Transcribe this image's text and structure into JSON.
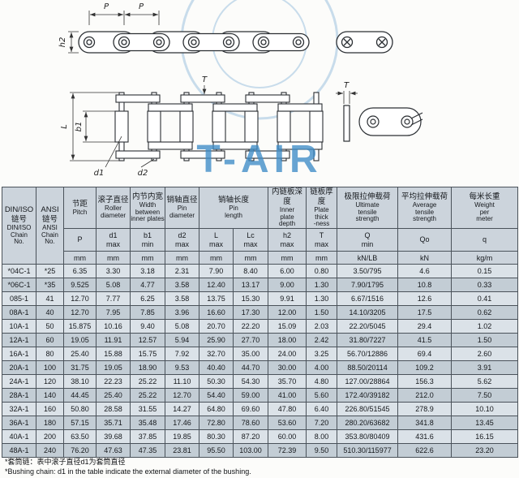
{
  "watermark": {
    "text": "T-AIR",
    "color": "#3e8cc7"
  },
  "diagram": {
    "labels": {
      "pitch": "P",
      "plate_height": "h2",
      "pin_length": "L",
      "inner_width": "b1",
      "roller_diameter": "d1",
      "pin_diameter": "d2",
      "plate_thickness": "T"
    }
  },
  "table": {
    "header": {
      "din_zh": "DIN/ISO\n链号",
      "din_en": "DIN/ISO\nChain\nNo.",
      "ansi_zh": "ANSI\n链号",
      "ansi_en": "ANSI\nChain\nNo.",
      "groups": [
        {
          "zh": "节距",
          "en": "Pitch"
        },
        {
          "zh": "滚子直径",
          "en": "Roller\ndiameter"
        },
        {
          "zh": "内节内宽",
          "en": "Width\nbetween\ninner plates"
        },
        {
          "zh": "销轴直径",
          "en": "Pin\ndiameter"
        },
        {
          "zh": "销轴长度",
          "en": "Pin\nlength"
        },
        {
          "zh": "内链板深度",
          "en": "Inner\nplate\ndepth"
        },
        {
          "zh": "链板厚度",
          "en": "Plate\nthick\n-ness"
        },
        {
          "zh": "极限拉伸载荷",
          "en": "Ultimate\ntensile\nstrength"
        },
        {
          "zh": "平均拉伸载荷",
          "en": "Average\ntensile\nstrength"
        },
        {
          "zh": "每米长重",
          "en": "Weight\nper\nmeter"
        }
      ],
      "symbols": [
        "P",
        "d1\nmax",
        "b1\nmin",
        "d2\nmax",
        "L\nmax",
        "Lc\nmax",
        "h2\nmax",
        "T\nmax",
        "Q\nmin",
        "Qo",
        "q"
      ],
      "units": [
        "mm",
        "mm",
        "mm",
        "mm",
        "mm",
        "mm",
        "mm",
        "mm",
        "kN/LB",
        "kN",
        "kg/m"
      ]
    },
    "rows": [
      [
        "*04C-1",
        "*25",
        "6.35",
        "3.30",
        "3.18",
        "2.31",
        "7.90",
        "8.40",
        "6.00",
        "0.80",
        "3.50/795",
        "4.6",
        "0.15"
      ],
      [
        "*06C-1",
        "*35",
        "9.525",
        "5.08",
        "4.77",
        "3.58",
        "12.40",
        "13.17",
        "9.00",
        "1.30",
        "7.90/1795",
        "10.8",
        "0.33"
      ],
      [
        "085-1",
        "41",
        "12.70",
        "7.77",
        "6.25",
        "3.58",
        "13.75",
        "15.30",
        "9.91",
        "1.30",
        "6.67/1516",
        "12.6",
        "0.41"
      ],
      [
        "08A-1",
        "40",
        "12.70",
        "7.95",
        "7.85",
        "3.96",
        "16.60",
        "17.30",
        "12.00",
        "1.50",
        "14.10/3205",
        "17.5",
        "0.62"
      ],
      [
        "10A-1",
        "50",
        "15.875",
        "10.16",
        "9.40",
        "5.08",
        "20.70",
        "22.20",
        "15.09",
        "2.03",
        "22.20/5045",
        "29.4",
        "1.02"
      ],
      [
        "12A-1",
        "60",
        "19.05",
        "11.91",
        "12.57",
        "5.94",
        "25.90",
        "27.70",
        "18.00",
        "2.42",
        "31.80/7227",
        "41.5",
        "1.50"
      ],
      [
        "16A-1",
        "80",
        "25.40",
        "15.88",
        "15.75",
        "7.92",
        "32.70",
        "35.00",
        "24.00",
        "3.25",
        "56.70/12886",
        "69.4",
        "2.60"
      ],
      [
        "20A-1",
        "100",
        "31.75",
        "19.05",
        "18.90",
        "9.53",
        "40.40",
        "44.70",
        "30.00",
        "4.00",
        "88.50/20114",
        "109.2",
        "3.91"
      ],
      [
        "24A-1",
        "120",
        "38.10",
        "22.23",
        "25.22",
        "11.10",
        "50.30",
        "54.30",
        "35.70",
        "4.80",
        "127.00/28864",
        "156.3",
        "5.62"
      ],
      [
        "28A-1",
        "140",
        "44.45",
        "25.40",
        "25.22",
        "12.70",
        "54.40",
        "59.00",
        "41.00",
        "5.60",
        "172.40/39182",
        "212.0",
        "7.50"
      ],
      [
        "32A-1",
        "160",
        "50.80",
        "28.58",
        "31.55",
        "14.27",
        "64.80",
        "69.60",
        "47.80",
        "6.40",
        "226.80/51545",
        "278.9",
        "10.10"
      ],
      [
        "36A-1",
        "180",
        "57.15",
        "35.71",
        "35.48",
        "17.46",
        "72.80",
        "78.60",
        "53.60",
        "7.20",
        "280.20/63682",
        "341.8",
        "13.45"
      ],
      [
        "40A-1",
        "200",
        "63.50",
        "39.68",
        "37.85",
        "19.85",
        "80.30",
        "87.20",
        "60.00",
        "8.00",
        "353.80/80409",
        "431.6",
        "16.15"
      ],
      [
        "48A-1",
        "240",
        "76.20",
        "47.63",
        "47.35",
        "23.81",
        "95.50",
        "103.00",
        "72.39",
        "9.50",
        "510.30/115977",
        "622.6",
        "23.20"
      ]
    ]
  },
  "footnotes": [
    "*套筒链：表中滚子直径d1为套筒直径",
    "*Bushing chain: d1 in the table indicate the external diameter of the bushing."
  ]
}
